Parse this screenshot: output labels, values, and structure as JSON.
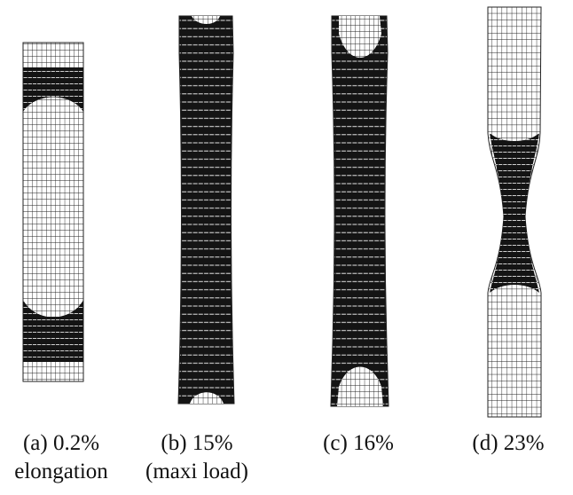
{
  "figure": {
    "panels": [
      {
        "id": "a",
        "label_line1": "(a) 0.2%",
        "label_line2": "elongation",
        "elongation_percent": 0.2
      },
      {
        "id": "b",
        "label_line1": "(b) 15%",
        "label_line2": "(maxi load)",
        "elongation_percent": 15
      },
      {
        "id": "c",
        "label_line1": "(c) 16%",
        "label_line2": "",
        "elongation_percent": 16
      },
      {
        "id": "d",
        "label_line1": "(d) 23%",
        "label_line2": "",
        "elongation_percent": 23
      }
    ],
    "colors": {
      "background": "#ffffff",
      "mesh_line": "#222222",
      "plastic_zone": "#141414",
      "elastic_zone": "#ffffff"
    }
  }
}
